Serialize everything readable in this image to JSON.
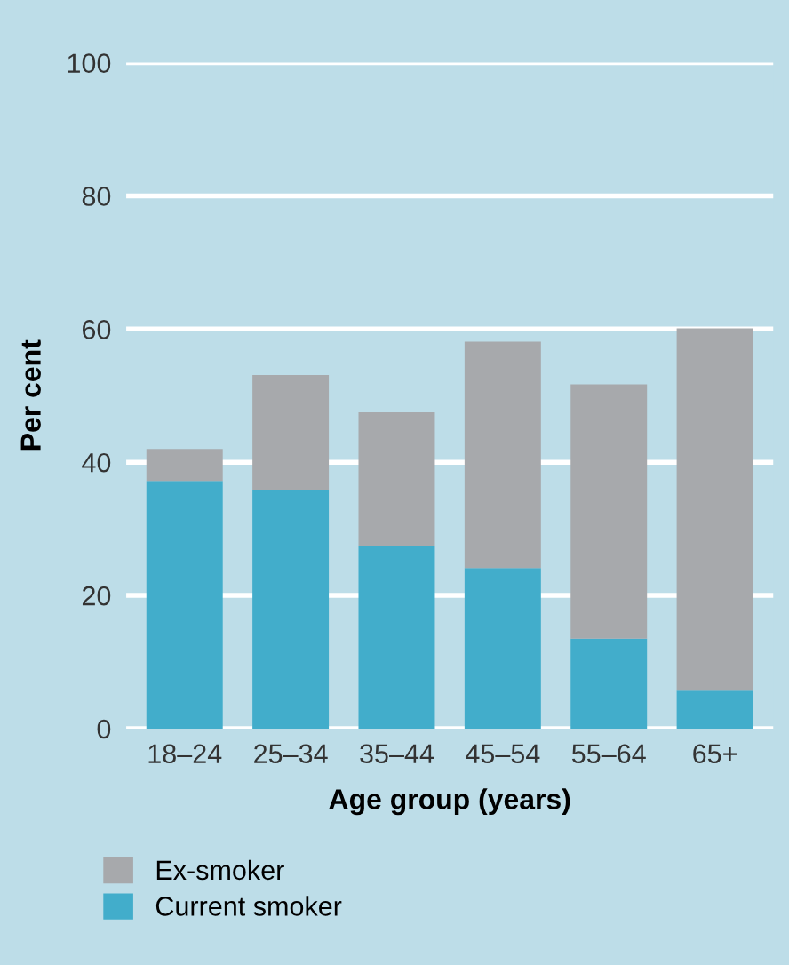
{
  "chart_data": {
    "type": "bar",
    "stacked": true,
    "xlabel": "Age group (years)",
    "ylabel": "Per cent",
    "categories": [
      "18–24",
      "25–34",
      "35–44",
      "45–54",
      "55–64",
      "65+"
    ],
    "series": [
      {
        "name": "Current smoker",
        "color": "#42adcb",
        "values": [
          37.2,
          35.8,
          27.4,
          24.1,
          13.5,
          5.7
        ]
      },
      {
        "name": "Ex-smoker",
        "color": "#a7a9ac",
        "values": [
          4.8,
          17.3,
          20.1,
          34.0,
          38.2,
          54.4
        ]
      }
    ],
    "ylim": [
      0,
      100
    ],
    "yticks": [
      0,
      20,
      40,
      60,
      80,
      100
    ],
    "grid": "y",
    "legend": "bottom left"
  }
}
